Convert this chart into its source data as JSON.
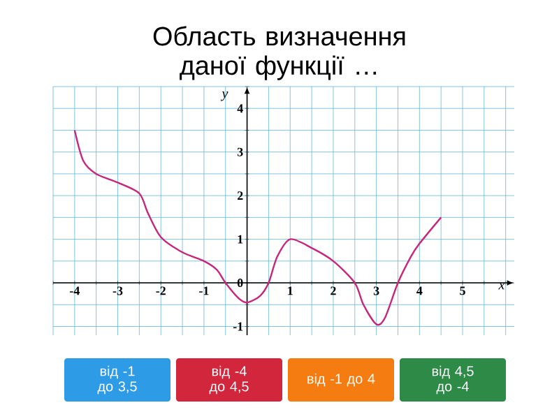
{
  "chart_data": {
    "type": "line",
    "title": "Область визначення даної функції …",
    "xlabel": "x",
    "ylabel": "y",
    "x": [
      -4,
      -3.8,
      -3.5,
      -3,
      -2.5,
      -2.3,
      -2,
      -1.5,
      -1,
      -0.7,
      -0.5,
      -0.2,
      0,
      0.3,
      0.5,
      0.7,
      1,
      1.5,
      2,
      2.5,
      2.7,
      3,
      3.2,
      3.5,
      3.8,
      4,
      4.5
    ],
    "series": [
      {
        "color": "#c8267a",
        "values": [
          3.5,
          2.8,
          2.5,
          2.3,
          2.05,
          1.6,
          1.05,
          0.7,
          0.5,
          0.3,
          0,
          -0.35,
          -0.45,
          -0.3,
          0,
          0.6,
          1,
          0.8,
          0.5,
          0,
          -0.5,
          -0.95,
          -0.8,
          0,
          0.6,
          0.9,
          1.5
        ]
      }
    ],
    "xlim": [
      -4.5,
      6.2
    ],
    "ylim": [
      -1.2,
      4.5
    ],
    "xticks": [
      {
        "value": -4.5,
        "label": null
      },
      -4,
      {
        "value": -3.5,
        "label": null
      },
      -3,
      {
        "value": -2.5,
        "label": null
      },
      -2,
      {
        "value": -1.5,
        "label": null
      },
      -1,
      {
        "value": -0.5,
        "label": null
      },
      {
        "value": 0,
        "label": null
      },
      {
        "value": 0.5,
        "label": null
      },
      1,
      {
        "value": 1.5,
        "label": null
      },
      2,
      {
        "value": 2.5,
        "label": null
      },
      3,
      {
        "value": 3.5,
        "label": null
      },
      4,
      {
        "value": 4.5,
        "label": null
      },
      5,
      {
        "value": 5.5,
        "label": null
      },
      {
        "value": 6,
        "label": null
      }
    ],
    "yticks": [
      -1,
      {
        "value": -0.5,
        "label": null
      },
      0,
      {
        "value": 0.5,
        "label": null
      },
      1,
      {
        "value": 1.5,
        "label": null
      },
      2,
      {
        "value": 2.5,
        "label": null
      },
      3,
      {
        "value": 3.5,
        "label": null
      },
      4,
      {
        "value": 4.5,
        "label": null
      }
    ],
    "grid": true,
    "marker": "none",
    "line_style": "solid",
    "annotations": [
      "від -1 до 3,5",
      "від -4 до 4,5",
      "від -1 до 4",
      "від 4,5 до -4"
    ]
  }
}
